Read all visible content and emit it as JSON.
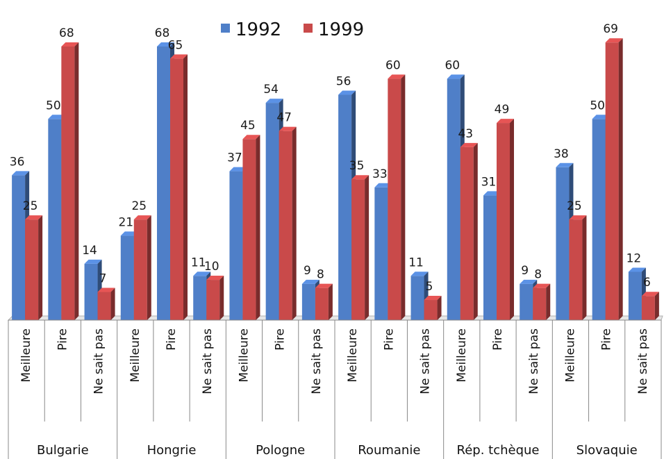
{
  "chart_data": {
    "type": "bar",
    "title": "",
    "xlabel": "",
    "ylabel": "",
    "ylim": [
      0,
      73
    ],
    "grid": false,
    "legend_position": "top",
    "colors": {
      "1992": "#4F7FC8",
      "1999": "#C94A4A"
    },
    "groups": [
      {
        "name": "Bulgarie",
        "categories": [
          "Meilleure",
          "Pire",
          "Ne sait pas"
        ]
      },
      {
        "name": "Hongrie",
        "categories": [
          "Meilleure",
          "Pire",
          "Ne sait pas"
        ]
      },
      {
        "name": "Pologne",
        "categories": [
          "Meilleure",
          "Pire",
          "Ne sait pas"
        ]
      },
      {
        "name": "Roumanie",
        "categories": [
          "Meilleure",
          "Pire",
          "Ne sait pas"
        ]
      },
      {
        "name": "Rép. tchèque",
        "categories": [
          "Meilleure",
          "Pire",
          "Ne sait pas"
        ]
      },
      {
        "name": "Slovaquie",
        "categories": [
          "Meilleure",
          "Pire",
          "Ne sait pas"
        ]
      }
    ],
    "series": [
      {
        "name": "1992",
        "values": [
          36,
          50,
          14,
          21,
          68,
          11,
          37,
          54,
          9,
          56,
          33,
          11,
          60,
          31,
          9,
          38,
          50,
          12
        ]
      },
      {
        "name": "1999",
        "values": [
          25,
          68,
          7,
          25,
          65,
          10,
          45,
          47,
          8,
          35,
          60,
          5,
          43,
          49,
          8,
          25,
          69,
          6
        ]
      }
    ]
  }
}
